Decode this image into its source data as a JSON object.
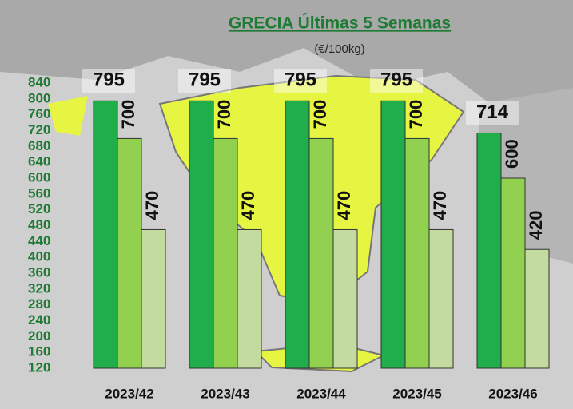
{
  "chart_data": {
    "type": "bar",
    "title": "GRECIA Últimas 5 Semanas",
    "subtitle": "(€/100kg)",
    "categories": [
      "2023/42",
      "2023/43",
      "2023/44",
      "2023/45",
      "2023/46"
    ],
    "series": [
      {
        "color": "#1fae4a",
        "values": [
          795,
          795,
          795,
          795,
          714
        ]
      },
      {
        "color": "#92d050",
        "values": [
          700,
          700,
          700,
          700,
          600
        ]
      },
      {
        "color": "#c4dba0",
        "values": [
          470,
          470,
          470,
          470,
          420
        ]
      }
    ],
    "ylim": [
      120,
      840
    ],
    "yticks": [
      120,
      160,
      200,
      240,
      280,
      320,
      360,
      400,
      440,
      480,
      520,
      560,
      600,
      640,
      680,
      720,
      760,
      800,
      840
    ],
    "grid": false
  }
}
